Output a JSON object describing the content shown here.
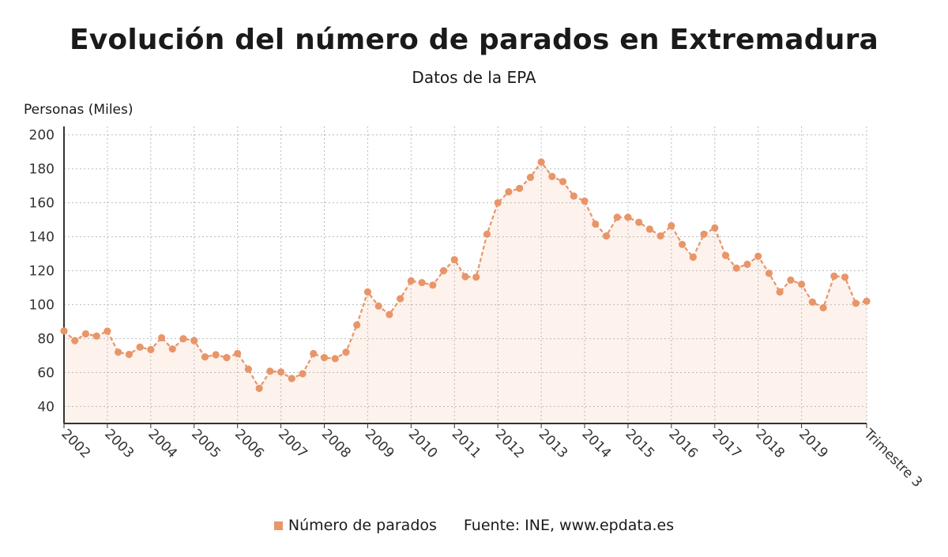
{
  "colors": {
    "series": "#e8956a",
    "area": "#fdf2ec",
    "grid": "#bbbbbb",
    "axis": "#333333"
  },
  "legend": {
    "series_label": "Número de parados",
    "source": "Fuente: INE, www.epdata.es"
  },
  "chart_data": {
    "type": "line",
    "title": "Evolución del número de parados en Extremadura",
    "subtitle": "Datos de la EPA",
    "ylabel": "Personas (Miles)",
    "xlabel": "",
    "ylim": [
      30,
      205
    ],
    "yticks": [
      40,
      60,
      80,
      100,
      120,
      140,
      160,
      180,
      200
    ],
    "grid": true,
    "legend_position": "bottom",
    "x_tick_labels": [
      "2002",
      "2003",
      "2004",
      "2005",
      "2006",
      "2007",
      "2008",
      "2009",
      "2010",
      "2011",
      "2012",
      "2013",
      "2014",
      "2015",
      "2016",
      "2017",
      "2018",
      "2019",
      "Trimestre 3"
    ],
    "series": [
      {
        "name": "Número de parados",
        "values": [
          84.5,
          78.8,
          82.8,
          81.5,
          84.4,
          72,
          70.7,
          75,
          73.5,
          80.5,
          73.9,
          79.9,
          78.8,
          69.2,
          70.5,
          68.8,
          71.2,
          62,
          50.7,
          60.8,
          60.3,
          56.5,
          59.3,
          71.2,
          68.8,
          68.2,
          72,
          88,
          107.5,
          99.2,
          94.2,
          103.5,
          114,
          113,
          111.5,
          120,
          126.5,
          116.5,
          116.2,
          141.5,
          160,
          166.5,
          168.5,
          175,
          184,
          175.5,
          172.5,
          164,
          161,
          147.5,
          140.5,
          151.5,
          151.5,
          148.5,
          144.5,
          140.5,
          146.5,
          135.5,
          128,
          141.5,
          145.2,
          129,
          121.5,
          123.8,
          128.5,
          118.5,
          107.5,
          114.5,
          112,
          101.5,
          98.2,
          116.8,
          116.2,
          100.8,
          102
        ]
      }
    ]
  }
}
